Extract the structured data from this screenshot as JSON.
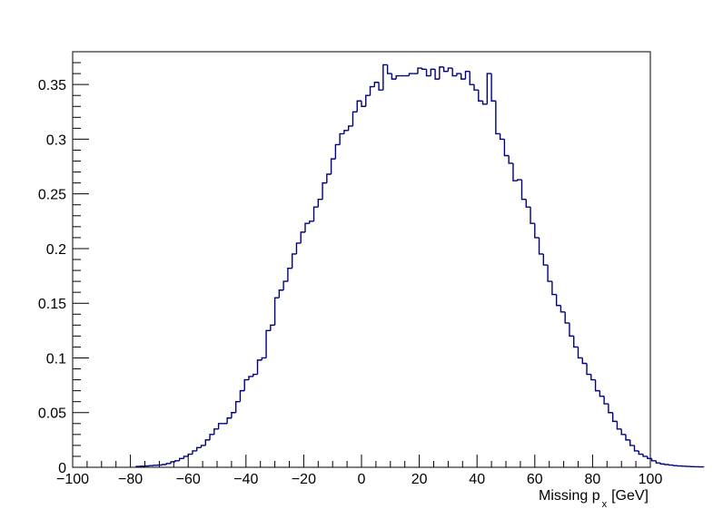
{
  "chart_data": {
    "type": "histogram",
    "xlabel": "Missing p",
    "xlabel_subscript": "x",
    "xlabel_unit": "[GeV]",
    "ylabel": "",
    "xlim": [
      -100,
      100
    ],
    "ylim": [
      0,
      0.38
    ],
    "x_ticks": [
      -100,
      -80,
      -60,
      -40,
      -20,
      0,
      20,
      40,
      60,
      80,
      100
    ],
    "x_tick_labels": [
      "−100",
      "−80",
      "−60",
      "−40",
      "−20",
      "0",
      "20",
      "40",
      "60",
      "80",
      "100"
    ],
    "y_ticks": [
      0,
      0.05,
      0.1,
      0.15,
      0.2,
      0.25,
      0.3,
      0.35
    ],
    "y_tick_labels": [
      "0",
      "0.05",
      "0.1",
      "0.15",
      "0.2",
      "0.25",
      "0.3",
      "0.35"
    ],
    "bin_width": 1.5,
    "bin_start": -78,
    "values": [
      0.0008,
      0.001,
      0.0012,
      0.0015,
      0.0018,
      0.002,
      0.0025,
      0.0035,
      0.005,
      0.006,
      0.008,
      0.01,
      0.012,
      0.015,
      0.018,
      0.02,
      0.025,
      0.03,
      0.035,
      0.04,
      0.04,
      0.045,
      0.05,
      0.06,
      0.07,
      0.08,
      0.083,
      0.085,
      0.098,
      0.1,
      0.125,
      0.13,
      0.155,
      0.162,
      0.17,
      0.182,
      0.195,
      0.205,
      0.215,
      0.223,
      0.225,
      0.238,
      0.245,
      0.26,
      0.268,
      0.282,
      0.295,
      0.305,
      0.308,
      0.312,
      0.325,
      0.335,
      0.33,
      0.34,
      0.348,
      0.352,
      0.345,
      0.368,
      0.36,
      0.355,
      0.358,
      0.358,
      0.358,
      0.36,
      0.36,
      0.365,
      0.364,
      0.358,
      0.364,
      0.355,
      0.366,
      0.362,
      0.365,
      0.358,
      0.36,
      0.355,
      0.362,
      0.35,
      0.345,
      0.335,
      0.332,
      0.36,
      0.335,
      0.305,
      0.3,
      0.285,
      0.278,
      0.262,
      0.263,
      0.245,
      0.238,
      0.223,
      0.21,
      0.195,
      0.185,
      0.17,
      0.158,
      0.148,
      0.142,
      0.132,
      0.12,
      0.11,
      0.1,
      0.095,
      0.085,
      0.08,
      0.07,
      0.065,
      0.058,
      0.05,
      0.042,
      0.035,
      0.03,
      0.025,
      0.02,
      0.015,
      0.012,
      0.01,
      0.008,
      0.006,
      0.004,
      0.003,
      0.0025,
      0.002,
      0.0015,
      0.0012,
      0.001,
      0.0008,
      0.0006,
      0.0005,
      0.0004
    ],
    "line_color": "#000080",
    "frame_color": "#000000",
    "grid": false,
    "legend": "none"
  }
}
